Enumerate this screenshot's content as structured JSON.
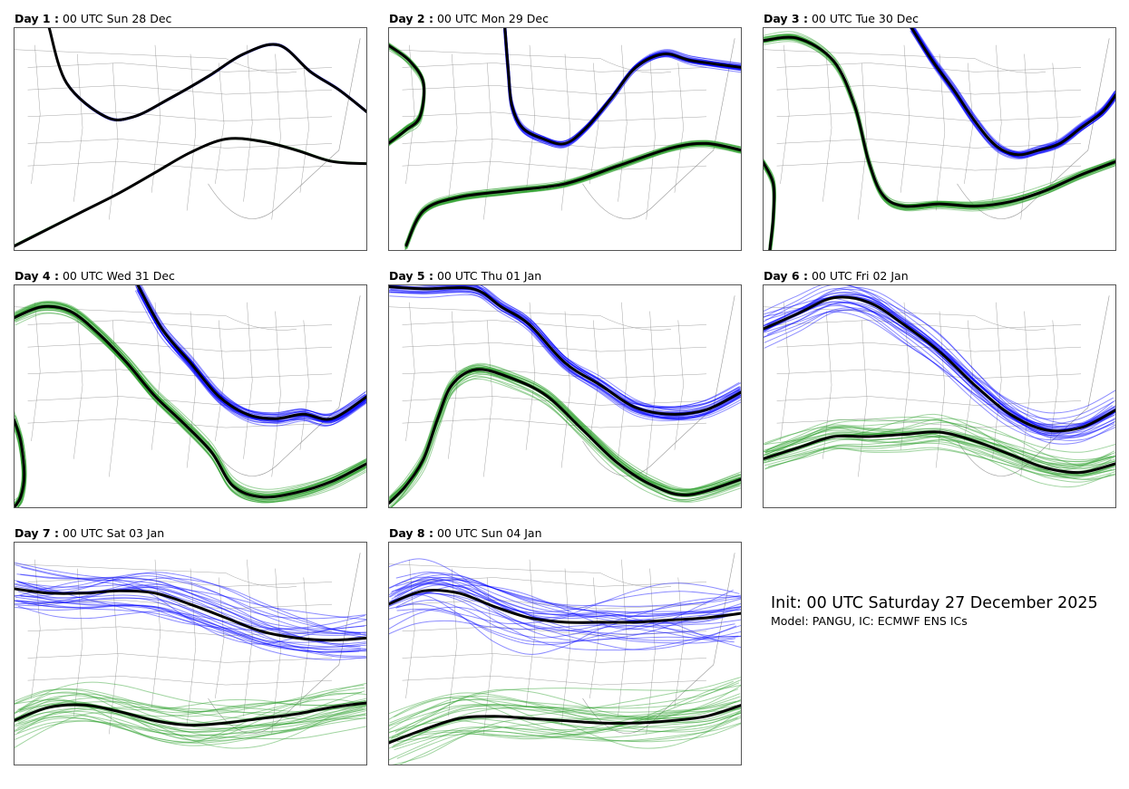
{
  "info": {
    "init_text": "Init: 00 UTC Saturday 27 December 2025",
    "model_text": "Model: PANGU, IC: ECMWF ENS ICs"
  },
  "chart_data": {
    "type": "line",
    "colors": {
      "north": "#0000ff",
      "south": "#2ca02c",
      "mean": "#000000",
      "map": "#7f7f7f"
    },
    "xlim": [
      0,
      1
    ],
    "ylim": [
      0,
      1
    ],
    "panels": [
      {
        "day_label": "Day 1 :",
        "valid_time": "00 UTC Sun 28 Dec",
        "spread_north": 0.004,
        "spread_south": 0.003,
        "north_x": [
          0.1,
          0.15,
          0.26,
          0.34,
          0.44,
          0.55,
          0.65,
          0.75,
          0.84,
          0.92,
          1.0
        ],
        "north_y": [
          0.0,
          0.25,
          0.4,
          0.4,
          0.32,
          0.22,
          0.12,
          0.08,
          0.2,
          0.28,
          0.38
        ],
        "south_x": [
          0.0,
          0.1,
          0.2,
          0.3,
          0.4,
          0.5,
          0.6,
          0.7,
          0.8,
          0.9,
          1.0
        ],
        "south_y": [
          0.98,
          0.9,
          0.82,
          0.74,
          0.65,
          0.56,
          0.5,
          0.51,
          0.55,
          0.6,
          0.61
        ]
      },
      {
        "day_label": "Day 2 :",
        "valid_time": "00 UTC Mon 29 Dec",
        "spread_north": 0.012,
        "spread_south": 0.012,
        "north_x": [
          0.33,
          0.34,
          0.35,
          0.38,
          0.44,
          0.5,
          0.56,
          0.63,
          0.7,
          0.78,
          0.86,
          1.0
        ],
        "north_y": [
          0.0,
          0.2,
          0.35,
          0.45,
          0.5,
          0.52,
          0.45,
          0.32,
          0.18,
          0.12,
          0.15,
          0.18
        ],
        "south_x": [
          0.05,
          0.1,
          0.2,
          0.35,
          0.5,
          0.65,
          0.8,
          0.9,
          1.0
        ],
        "south_y": [
          0.98,
          0.82,
          0.76,
          0.73,
          0.7,
          0.62,
          0.54,
          0.52,
          0.55
        ],
        "west_x": [
          0.0,
          0.06,
          0.1,
          0.09,
          0.05,
          0.0
        ],
        "west_y": [
          0.08,
          0.15,
          0.25,
          0.4,
          0.46,
          0.52
        ]
      },
      {
        "day_label": "Day 3 :",
        "valid_time": "00 UTC Tue 30 Dec",
        "spread_north": 0.015,
        "spread_south": 0.015,
        "north_x": [
          0.42,
          0.48,
          0.54,
          0.6,
          0.66,
          0.72,
          0.78,
          0.84,
          0.9,
          0.96,
          1.0
        ],
        "north_y": [
          0.0,
          0.15,
          0.28,
          0.42,
          0.53,
          0.57,
          0.55,
          0.52,
          0.45,
          0.38,
          0.3
        ],
        "south_x": [
          0.0,
          0.1,
          0.2,
          0.26,
          0.3,
          0.34,
          0.4,
          0.5,
          0.6,
          0.7,
          0.8,
          0.9,
          1.0
        ],
        "south_y": [
          0.06,
          0.05,
          0.15,
          0.35,
          0.6,
          0.75,
          0.8,
          0.79,
          0.8,
          0.78,
          0.73,
          0.66,
          0.6
        ],
        "west_x": [
          0.0,
          0.03,
          0.03,
          0.02
        ],
        "west_y": [
          0.6,
          0.7,
          0.85,
          1.0
        ]
      },
      {
        "day_label": "Day 4 :",
        "valid_time": "00 UTC Wed 31 Dec",
        "spread_north": 0.02,
        "spread_south": 0.02,
        "north_x": [
          0.35,
          0.42,
          0.5,
          0.58,
          0.66,
          0.74,
          0.82,
          0.9,
          1.0
        ],
        "north_y": [
          0.0,
          0.2,
          0.35,
          0.5,
          0.58,
          0.6,
          0.58,
          0.6,
          0.5
        ],
        "south_x": [
          0.0,
          0.08,
          0.16,
          0.24,
          0.32,
          0.4,
          0.48,
          0.56,
          0.62,
          0.7,
          0.8,
          0.9,
          1.0
        ],
        "south_y": [
          0.15,
          0.1,
          0.12,
          0.22,
          0.35,
          0.5,
          0.62,
          0.75,
          0.9,
          0.95,
          0.93,
          0.88,
          0.8
        ],
        "west_x": [
          0.0,
          0.02,
          0.03,
          0.02,
          0.0
        ],
        "west_y": [
          0.6,
          0.7,
          0.85,
          0.95,
          1.0
        ]
      },
      {
        "day_label": "Day 5 :",
        "valid_time": "00 UTC Thu 01 Jan",
        "spread_north": 0.025,
        "spread_south": 0.025,
        "north_x": [
          0.0,
          0.1,
          0.24,
          0.32,
          0.4,
          0.5,
          0.6,
          0.7,
          0.8,
          0.9,
          1.0
        ],
        "north_y": [
          0.01,
          0.02,
          0.02,
          0.1,
          0.18,
          0.35,
          0.45,
          0.55,
          0.58,
          0.56,
          0.48
        ],
        "south_x": [
          0.0,
          0.05,
          0.1,
          0.14,
          0.18,
          0.25,
          0.35,
          0.45,
          0.55,
          0.65,
          0.75,
          0.85,
          1.0
        ],
        "south_y": [
          0.98,
          0.9,
          0.78,
          0.6,
          0.45,
          0.38,
          0.42,
          0.5,
          0.65,
          0.8,
          0.9,
          0.94,
          0.87
        ]
      },
      {
        "day_label": "Day 6 :",
        "valid_time": "00 UTC Fri 02 Jan",
        "spread_north": 0.05,
        "spread_south": 0.05,
        "north_x": [
          0.0,
          0.1,
          0.2,
          0.3,
          0.4,
          0.5,
          0.6,
          0.7,
          0.8,
          0.9,
          1.0
        ],
        "north_y": [
          0.2,
          0.13,
          0.06,
          0.08,
          0.18,
          0.3,
          0.45,
          0.58,
          0.65,
          0.64,
          0.56
        ],
        "south_x": [
          0.0,
          0.1,
          0.2,
          0.3,
          0.4,
          0.5,
          0.6,
          0.7,
          0.8,
          0.9,
          1.0
        ],
        "south_y": [
          0.78,
          0.73,
          0.68,
          0.68,
          0.67,
          0.66,
          0.7,
          0.76,
          0.82,
          0.84,
          0.8
        ]
      },
      {
        "day_label": "Day 7 :",
        "valid_time": "00 UTC Sat 03 Jan",
        "spread_north": 0.08,
        "spread_south": 0.07,
        "north_x": [
          0.0,
          0.1,
          0.2,
          0.3,
          0.4,
          0.5,
          0.6,
          0.7,
          0.8,
          0.9,
          1.0
        ],
        "north_y": [
          0.21,
          0.23,
          0.23,
          0.22,
          0.23,
          0.28,
          0.34,
          0.4,
          0.43,
          0.44,
          0.43
        ],
        "south_x": [
          0.0,
          0.1,
          0.2,
          0.3,
          0.4,
          0.5,
          0.6,
          0.7,
          0.8,
          0.9,
          1.0
        ],
        "south_y": [
          0.8,
          0.74,
          0.73,
          0.76,
          0.8,
          0.82,
          0.81,
          0.79,
          0.77,
          0.74,
          0.72
        ]
      },
      {
        "day_label": "Day 8 :",
        "valid_time": "00 UTC Sun 04 Jan",
        "spread_north": 0.09,
        "spread_south": 0.09,
        "north_x": [
          0.0,
          0.1,
          0.2,
          0.3,
          0.4,
          0.5,
          0.6,
          0.7,
          0.8,
          0.9,
          1.0
        ],
        "north_y": [
          0.28,
          0.22,
          0.23,
          0.29,
          0.34,
          0.36,
          0.36,
          0.36,
          0.35,
          0.34,
          0.32
        ],
        "south_x": [
          0.0,
          0.1,
          0.2,
          0.3,
          0.4,
          0.5,
          0.6,
          0.7,
          0.8,
          0.9,
          1.0
        ],
        "south_y": [
          0.9,
          0.84,
          0.79,
          0.78,
          0.79,
          0.8,
          0.81,
          0.81,
          0.8,
          0.78,
          0.73
        ]
      }
    ]
  }
}
